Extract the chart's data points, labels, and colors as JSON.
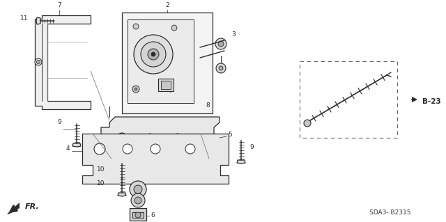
{
  "bg_color": "#ffffff",
  "fig_width": 6.4,
  "fig_height": 3.19,
  "line_color": "#2a2a2a",
  "ref_code": "SDA3- B2315",
  "b23_label": "B-23"
}
